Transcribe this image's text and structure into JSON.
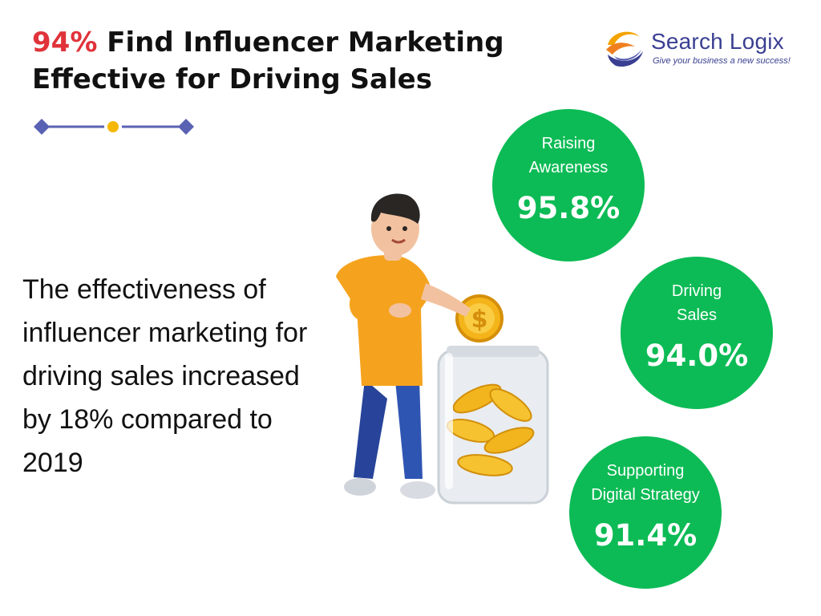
{
  "header": {
    "highlight": "94%",
    "title_line1": "Find Influencer Marketing",
    "title_line2": "Effective for Driving Sales"
  },
  "brand": {
    "name": "Search Logix",
    "tagline": "Give your business a new success!"
  },
  "statement": "The effectiveness of influencer marketing for driving sales increased by 18% compared to 2019",
  "stats": [
    {
      "label": "Raising\nAwareness",
      "value": "95.8%"
    },
    {
      "label": "Driving\nSales",
      "value": "94.0%"
    },
    {
      "label": "Supporting\nDigital Strategy",
      "value": "91.4%"
    }
  ],
  "colors": {
    "accent_red": "#e0333a",
    "circle_green": "#0cbb55",
    "brand_blue": "#3a3f92",
    "divider_blue": "#5a62b3",
    "divider_yellow": "#f5b800"
  },
  "chart_data": {
    "type": "bubble",
    "categories": [
      "Raising Awareness",
      "Driving Sales",
      "Supporting Digital Strategy"
    ],
    "values": [
      95.8,
      94.0,
      91.4
    ],
    "unit": "%",
    "title": "94% Find Influencer Marketing Effective for Driving Sales"
  }
}
